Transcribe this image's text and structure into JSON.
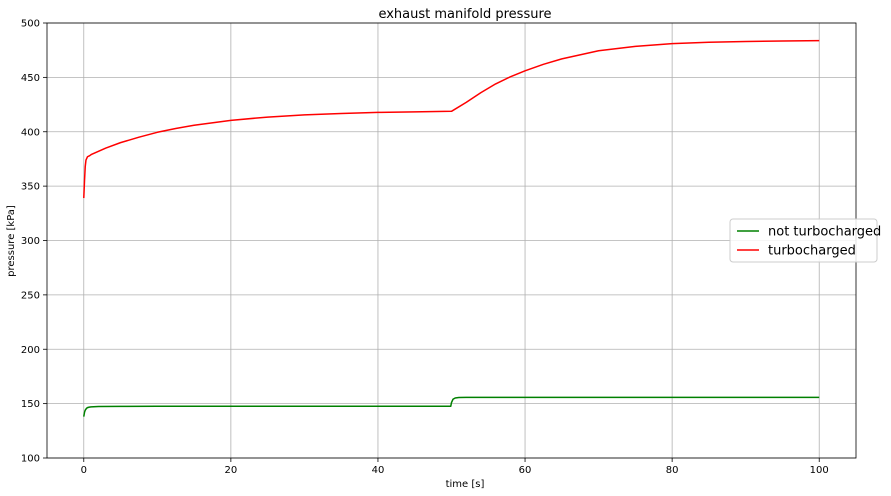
{
  "chart_data": {
    "type": "line",
    "title": "exhaust manifold pressure",
    "xlabel": "time [s]",
    "ylabel": "pressure [kPa]",
    "xlim": [
      -5,
      105
    ],
    "ylim": [
      100,
      500
    ],
    "xticks": [
      0,
      20,
      40,
      60,
      80,
      100
    ],
    "yticks": [
      100,
      150,
      200,
      250,
      300,
      350,
      400,
      450,
      500
    ],
    "grid": true,
    "legend_position": "center-right",
    "series": [
      {
        "name": "not turbocharged",
        "color": "#008000",
        "x": [
          0,
          0.1,
          0.2,
          0.35,
          0.5,
          0.75,
          1,
          2,
          5,
          10,
          20,
          30,
          40,
          49.9,
          50,
          50.2,
          50.5,
          51,
          52,
          55,
          60,
          70,
          80,
          90,
          100
        ],
        "y": [
          138,
          142,
          144,
          145.5,
          146.3,
          146.8,
          147,
          147.3,
          147.5,
          147.6,
          147.6,
          147.6,
          147.6,
          147.6,
          151,
          154,
          155.2,
          155.6,
          155.8,
          155.8,
          155.8,
          155.8,
          155.8,
          155.8,
          155.8
        ]
      },
      {
        "name": "turbocharged",
        "color": "#ff0000",
        "x": [
          0,
          0.1,
          0.2,
          0.3,
          0.5,
          0.8,
          1,
          2,
          3,
          5,
          7.5,
          10,
          12.5,
          15,
          20,
          25,
          30,
          35,
          40,
          45,
          50,
          52,
          54,
          56,
          58,
          60,
          62.5,
          65,
          70,
          75,
          80,
          85,
          90,
          95,
          100
        ],
        "y": [
          339,
          355,
          368,
          374,
          377,
          378,
          379,
          382,
          385,
          390,
          395,
          399.5,
          403,
          406,
          410.5,
          413.5,
          415.5,
          416.8,
          417.8,
          418.3,
          418.8,
          427,
          436,
          444,
          450.5,
          456,
          462,
          467,
          474.5,
          478.5,
          481,
          482.3,
          483,
          483.5,
          483.8
        ]
      }
    ]
  }
}
